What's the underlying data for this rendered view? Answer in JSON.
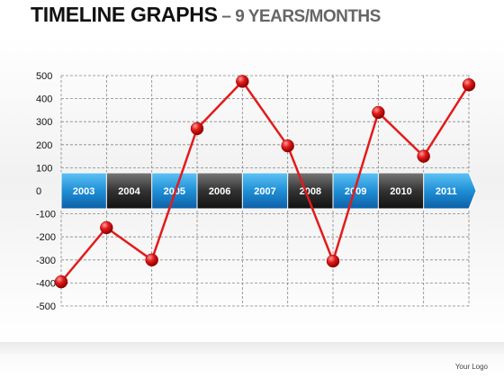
{
  "header": {
    "title_main": "TIMELINE  GRAPHS",
    "title_sub": " – 9 YEARS/MONTHS"
  },
  "footer": {
    "logo_text": "Your Logo"
  },
  "colors": {
    "line": "#e21b1b",
    "marker": "#e21b1b",
    "arrow_blue": "#1f8fd6",
    "arrow_dark": "#333333",
    "grid": "#888888"
  },
  "chart_data": {
    "type": "line",
    "title": "",
    "xlabel": "",
    "ylabel": "",
    "ylim": [
      -500,
      500
    ],
    "yticks": [
      500,
      400,
      300,
      200,
      100,
      0,
      -100,
      -200,
      -300,
      -400,
      -500
    ],
    "grid": true,
    "timeline_labels": [
      "2003",
      "2004",
      "2005",
      "2006",
      "2007",
      "2008",
      "2009",
      "2010",
      "2011"
    ],
    "series": [
      {
        "x": [
          0,
          1,
          2,
          3,
          4,
          5,
          6,
          7,
          8,
          9
        ],
        "values": [
          -395,
          -160,
          -300,
          270,
          475,
          195,
          -305,
          340,
          150,
          460
        ]
      }
    ]
  }
}
